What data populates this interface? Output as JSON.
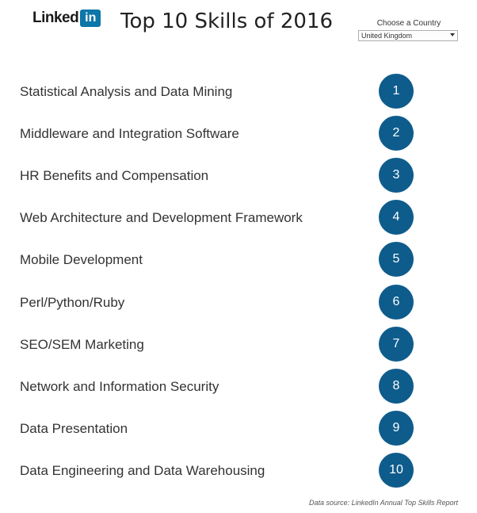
{
  "header": {
    "logo_word": "Linked",
    "logo_box": "in",
    "title": "Top 10 Skills of 2016"
  },
  "filter": {
    "label": "Choose a Country",
    "selected": "United Kingdom"
  },
  "skills": [
    {
      "name": "Statistical Analysis and Data Mining",
      "rank": "1"
    },
    {
      "name": "Middleware and Integration Software",
      "rank": "2"
    },
    {
      "name": "HR Benefits and Compensation",
      "rank": "3"
    },
    {
      "name": "Web Architecture and Development Framework",
      "rank": "4"
    },
    {
      "name": "Mobile Development",
      "rank": "5"
    },
    {
      "name": "Perl/Python/Ruby",
      "rank": "6"
    },
    {
      "name": "SEO/SEM Marketing",
      "rank": "7"
    },
    {
      "name": "Network and Information Security",
      "rank": "8"
    },
    {
      "name": "Data Presentation",
      "rank": "9"
    },
    {
      "name": "Data Engineering and Data Warehousing",
      "rank": "10"
    }
  ],
  "footer": {
    "source": "Data source: LinkedIn Annual Top Skills Report"
  },
  "colors": {
    "brand": "#0e76a8",
    "rank_circle": "#0e5c8c"
  }
}
